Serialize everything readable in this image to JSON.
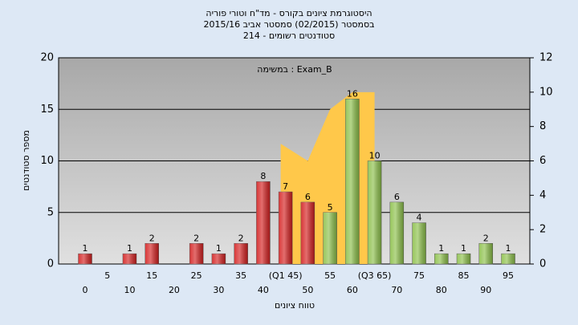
{
  "chart_data": {
    "type": "bar",
    "title": [
      "היסטוגרמת ציונים בקורס - מד\"ח וטורי פוריה",
      "בסמסטר (02/2015) סמסטר אביב 2015/16",
      "סטודנטים רשומים - 214"
    ],
    "annotation": "במשימה : Exam_B",
    "x_label": "טווח ציונים",
    "y_label": "מספר סטודנטים",
    "categories": [
      "0",
      "5",
      "10",
      "15",
      "20",
      "25",
      "30",
      "35",
      "40",
      "(Q1 45)",
      "50",
      "55",
      "60",
      "(Q3 65)",
      "70",
      "75",
      "80",
      "85",
      "90",
      "95"
    ],
    "series": [
      {
        "type": "bar",
        "values": [
          1,
          0,
          1,
          2,
          0,
          2,
          1,
          2,
          8,
          7,
          6,
          5,
          16,
          10,
          6,
          4,
          1,
          1,
          2,
          1
        ],
        "colors": [
          "#d42020",
          "#d42020",
          "#d42020",
          "#d42020",
          "#d42020",
          "#d42020",
          "#d42020",
          "#d42020",
          "#d42020",
          "#d42020",
          "#d42020",
          "#8cc04a",
          "#8cc04a",
          "#8cc04a",
          "#8cc04a",
          "#8cc04a",
          "#8cc04a",
          "#8cc04a",
          "#8cc04a",
          "#8cc04a"
        ]
      },
      {
        "type": "area",
        "axis": "y2",
        "color": "#ffc84a",
        "values": [
          null,
          null,
          null,
          null,
          null,
          null,
          null,
          null,
          null,
          7,
          6,
          9,
          10,
          10,
          null,
          null,
          null,
          null,
          null,
          null
        ]
      }
    ],
    "ylim": [
      0,
      20
    ],
    "yticks": [
      0,
      5,
      10,
      15,
      20
    ],
    "y2lim": [
      0,
      12
    ],
    "y2ticks": [
      0,
      2,
      4,
      6,
      8,
      10,
      12
    ],
    "grid": true
  }
}
